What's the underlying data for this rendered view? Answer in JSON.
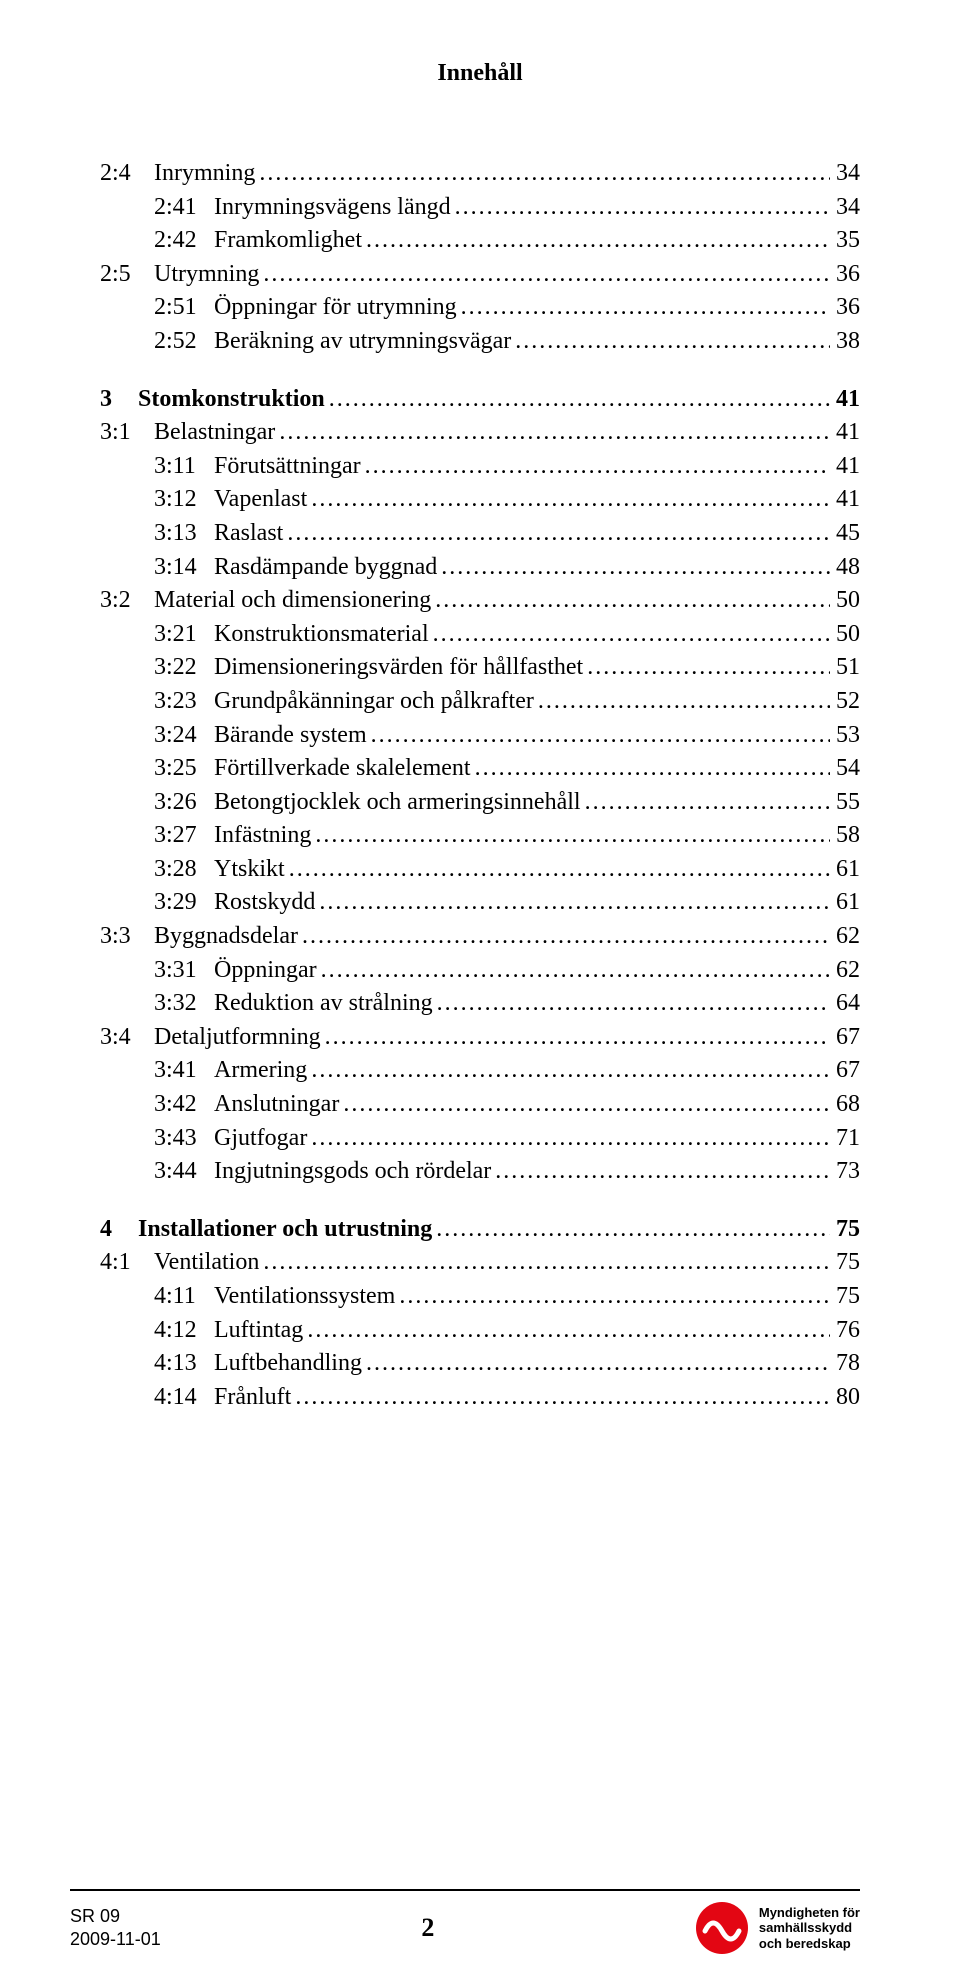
{
  "header": {
    "title": "Innehåll"
  },
  "toc": [
    {
      "level": 2,
      "num": "2:4",
      "label": "Inrymning",
      "page": "34"
    },
    {
      "level": 3,
      "num": "2:41",
      "label": "Inrymningsvägens längd",
      "page": "34"
    },
    {
      "level": 3,
      "num": "2:42",
      "label": "Framkomlighet",
      "page": "35"
    },
    {
      "level": 2,
      "num": "2:5",
      "label": "Utrymning",
      "page": "36"
    },
    {
      "level": 3,
      "num": "2:51",
      "label": "Öppningar för utrymning",
      "page": "36"
    },
    {
      "level": 3,
      "num": "2:52",
      "label": "Beräkning av utrymningsvägar",
      "page": "38"
    },
    {
      "level": 1,
      "num": "3",
      "label": "Stomkonstruktion",
      "page": "41"
    },
    {
      "level": 2,
      "num": "3:1",
      "label": "Belastningar",
      "page": "41"
    },
    {
      "level": 3,
      "num": "3:11",
      "label": "Förutsättningar",
      "page": "41"
    },
    {
      "level": 3,
      "num": "3:12",
      "label": "Vapenlast",
      "page": "41"
    },
    {
      "level": 3,
      "num": "3:13",
      "label": "Raslast",
      "page": "45"
    },
    {
      "level": 3,
      "num": "3:14",
      "label": "Rasdämpande byggnad",
      "page": "48"
    },
    {
      "level": 2,
      "num": "3:2",
      "label": "Material och dimensionering",
      "page": "50"
    },
    {
      "level": 3,
      "num": "3:21",
      "label": "Konstruktionsmaterial",
      "page": "50"
    },
    {
      "level": 3,
      "num": "3:22",
      "label": "Dimensioneringsvärden för hållfasthet",
      "page": "51"
    },
    {
      "level": 3,
      "num": "3:23",
      "label": "Grundpåkänningar och pålkrafter",
      "page": "52"
    },
    {
      "level": 3,
      "num": "3:24",
      "label": "Bärande system",
      "page": "53"
    },
    {
      "level": 3,
      "num": "3:25",
      "label": "Förtillverkade skalelement",
      "page": "54"
    },
    {
      "level": 3,
      "num": "3:26",
      "label": "Betongtjocklek och armeringsinnehåll",
      "page": "55"
    },
    {
      "level": 3,
      "num": "3:27",
      "label": "Infästning",
      "page": "58"
    },
    {
      "level": 3,
      "num": "3:28",
      "label": "Ytskikt",
      "page": "61"
    },
    {
      "level": 3,
      "num": "3:29",
      "label": "Rostskydd",
      "page": "61"
    },
    {
      "level": 2,
      "num": "3:3",
      "label": "Byggnadsdelar",
      "page": "62"
    },
    {
      "level": 3,
      "num": "3:31",
      "label": "Öppningar",
      "page": "62"
    },
    {
      "level": 3,
      "num": "3:32",
      "label": "Reduktion av strålning",
      "page": "64"
    },
    {
      "level": 2,
      "num": "3:4",
      "label": "Detaljutformning",
      "page": "67"
    },
    {
      "level": 3,
      "num": "3:41",
      "label": "Armering",
      "page": "67"
    },
    {
      "level": 3,
      "num": "3:42",
      "label": "Anslutningar",
      "page": "68"
    },
    {
      "level": 3,
      "num": "3:43",
      "label": "Gjutfogar",
      "page": "71"
    },
    {
      "level": 3,
      "num": "3:44",
      "label": "Ingjutningsgods och rördelar",
      "page": "73"
    },
    {
      "level": 1,
      "num": "4",
      "label": "Installationer och utrustning",
      "page": "75"
    },
    {
      "level": 2,
      "num": "4:1",
      "label": "Ventilation",
      "page": "75"
    },
    {
      "level": 3,
      "num": "4:11",
      "label": "Ventilationssystem",
      "page": "75"
    },
    {
      "level": 3,
      "num": "4:12",
      "label": "Luftintag",
      "page": "76"
    },
    {
      "level": 3,
      "num": "4:13",
      "label": "Luftbehandling",
      "page": "78"
    },
    {
      "level": 3,
      "num": "4:14",
      "label": "Frånluft",
      "page": "80"
    }
  ],
  "footer": {
    "doc_code": "SR 09",
    "doc_date": "2009-11-01",
    "page_number": "2",
    "agency_line1": "Myndigheten för",
    "agency_line2": "samhällsskydd",
    "agency_line3": "och beredskap",
    "logo_colors": {
      "red": "#e30613",
      "white": "#ffffff"
    }
  }
}
